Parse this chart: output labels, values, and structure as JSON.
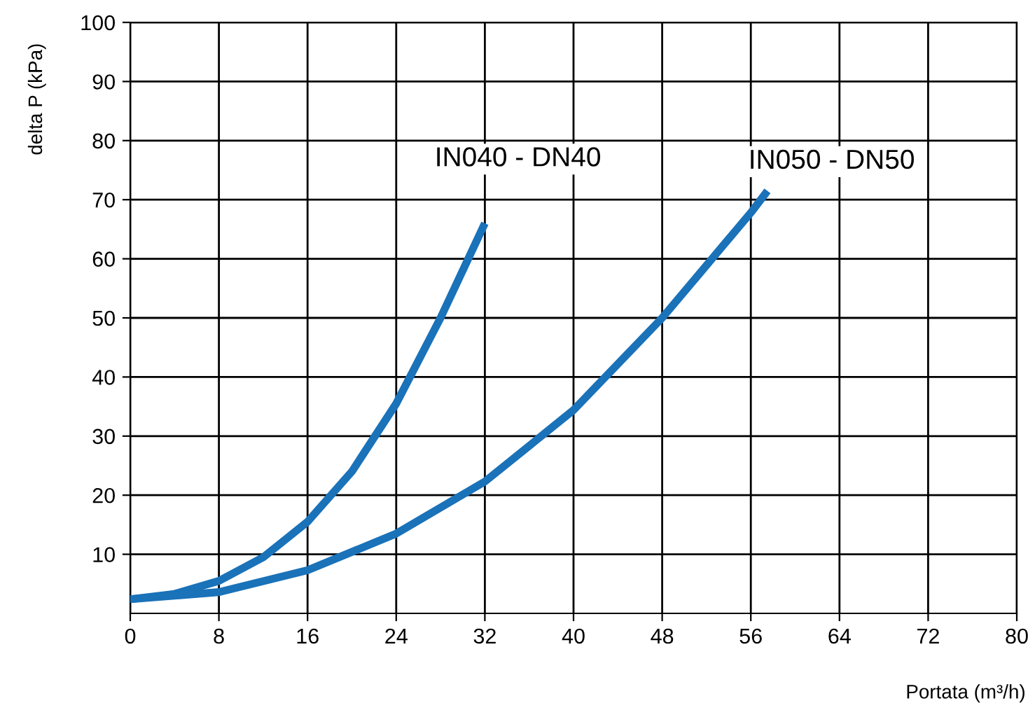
{
  "chart_data": {
    "type": "line",
    "xlabel": "Portata (m³/h)",
    "ylabel": "delta P (kPa)",
    "xlim": [
      0,
      80
    ],
    "xticks": [
      0,
      8,
      16,
      24,
      32,
      40,
      48,
      56,
      64,
      72,
      80
    ],
    "ylim": [
      0,
      100
    ],
    "yticks": [
      10,
      20,
      30,
      40,
      50,
      60,
      70,
      80,
      90,
      100
    ],
    "grid": true,
    "legend": false,
    "marker": "none",
    "line_style": "solid",
    "series": [
      {
        "name": "IN040 - DN40",
        "color": "#1a72b9",
        "x": [
          0,
          4,
          8,
          12,
          16,
          20,
          24,
          28,
          32
        ],
        "values": [
          2.4,
          3.3,
          5.5,
          9.5,
          15.5,
          24,
          35.5,
          50,
          66
        ]
      },
      {
        "name": "IN050 - DN50",
        "color": "#1a72b9",
        "x": [
          0,
          8,
          16,
          24,
          32,
          40,
          48,
          56,
          57.5
        ],
        "values": [
          2.4,
          3.6,
          7.3,
          13.5,
          22.3,
          34.4,
          50,
          67.8,
          71.5
        ]
      }
    ]
  }
}
